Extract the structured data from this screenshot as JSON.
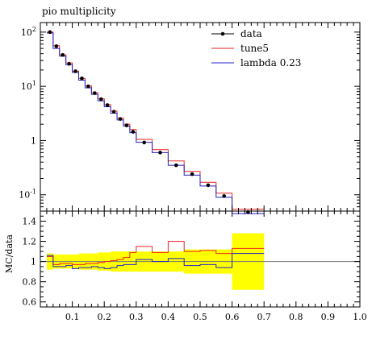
{
  "chart_data": [
    {
      "type": "line",
      "title": "pio multiplicity",
      "xlim": [
        0.0,
        1.0
      ],
      "ylim": [
        0.05,
        150
      ],
      "yscale": "log",
      "ytick_labels": [
        "10^-1",
        "1",
        "10^1",
        "10^2"
      ],
      "legend_position": "top-right",
      "x_edges": [
        0.02,
        0.04,
        0.06,
        0.08,
        0.1,
        0.12,
        0.14,
        0.16,
        0.18,
        0.2,
        0.22,
        0.24,
        0.26,
        0.28,
        0.3,
        0.35,
        0.4,
        0.45,
        0.5,
        0.55,
        0.6,
        0.7
      ],
      "series": [
        {
          "name": "data",
          "style": "points",
          "color": "#000000",
          "x": [
            0.03,
            0.05,
            0.07,
            0.09,
            0.11,
            0.13,
            0.15,
            0.17,
            0.19,
            0.21,
            0.23,
            0.25,
            0.27,
            0.29,
            0.325,
            0.375,
            0.425,
            0.475,
            0.525,
            0.575,
            0.65
          ],
          "values": [
            100,
            55,
            38,
            26,
            19,
            14,
            10,
            7.5,
            5.8,
            4.5,
            3.4,
            2.5,
            1.9,
            1.45,
            0.92,
            0.6,
            0.35,
            0.24,
            0.15,
            0.095,
            0.048
          ]
        },
        {
          "name": "tune5",
          "style": "step",
          "color": "#ee2222",
          "values": [
            100,
            56,
            38,
            27,
            19,
            14,
            10.2,
            7.6,
            5.9,
            4.6,
            3.5,
            2.6,
            2.0,
            1.6,
            1.05,
            0.68,
            0.42,
            0.27,
            0.17,
            0.107,
            0.054
          ]
        },
        {
          "name": "lambda 0.23",
          "style": "step",
          "color": "#2222cc",
          "values": [
            96,
            50,
            36,
            25,
            18,
            13,
            9.4,
            7.1,
            5.4,
            4.2,
            3.2,
            2.4,
            1.85,
            1.4,
            0.93,
            0.6,
            0.35,
            0.23,
            0.145,
            0.09,
            0.045
          ]
        }
      ]
    },
    {
      "type": "line",
      "ylabel": "MC/data",
      "xlim": [
        0.0,
        1.0
      ],
      "ylim": [
        0.55,
        1.5
      ],
      "xtick_labels": [
        "0.1",
        "0.2",
        "0.3",
        "0.4",
        "0.5",
        "0.6",
        "0.7",
        "0.8",
        "0.9",
        "1.0"
      ],
      "ytick_labels": [
        "0.6",
        "0.8",
        "1",
        "1.2",
        "1.4"
      ],
      "band_color": "#ffff00",
      "data_uncertainty_band": {
        "lower": [
          0.92,
          0.93,
          0.93,
          0.93,
          0.93,
          0.92,
          0.92,
          0.92,
          0.91,
          0.91,
          0.9,
          0.9,
          0.9,
          0.9,
          0.9,
          0.9,
          0.9,
          0.88,
          0.88,
          0.88,
          0.72
        ],
        "upper": [
          1.08,
          1.07,
          1.07,
          1.07,
          1.07,
          1.08,
          1.08,
          1.08,
          1.09,
          1.09,
          1.1,
          1.1,
          1.1,
          1.1,
          1.1,
          1.1,
          1.1,
          1.12,
          1.12,
          1.12,
          1.28
        ]
      },
      "series": [
        {
          "name": "tune5",
          "color": "#ee2222",
          "values": [
            1.05,
            0.97,
            0.98,
            0.98,
            0.97,
            0.97,
            0.98,
            0.98,
            0.99,
            1.0,
            1.01,
            1.02,
            1.04,
            1.09,
            1.15,
            1.09,
            1.2,
            1.1,
            1.11,
            1.08,
            1.13
          ]
        },
        {
          "name": "lambda 0.23",
          "color": "#2222cc",
          "values": [
            1.06,
            0.95,
            0.95,
            0.96,
            0.93,
            0.94,
            0.94,
            0.95,
            0.94,
            0.93,
            0.94,
            0.96,
            0.97,
            0.97,
            1.02,
            1.0,
            1.03,
            0.96,
            0.97,
            0.94,
            1.08
          ]
        }
      ]
    }
  ]
}
